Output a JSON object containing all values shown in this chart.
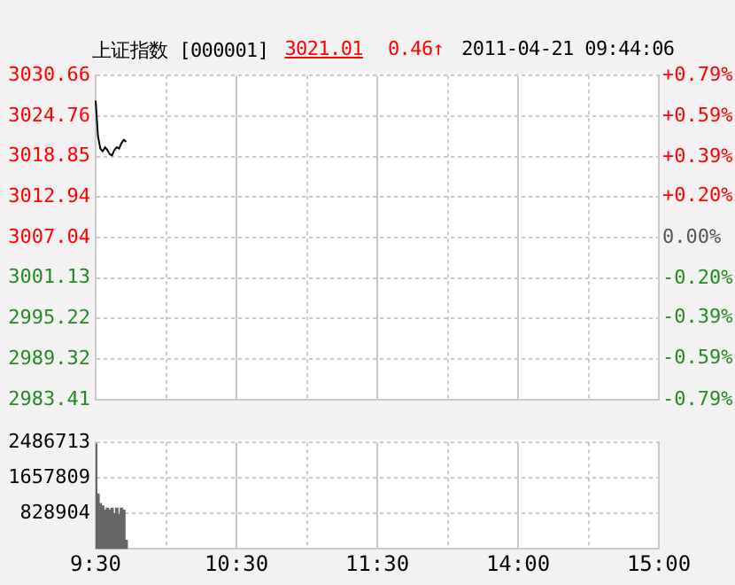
{
  "chart_data": [
    {
      "type": "line",
      "title": "上证指数 [000001]",
      "annotations": [
        "3021.01",
        "0.46↑",
        "2011-04-21 09:44:06"
      ],
      "color": "#000000",
      "categories": [
        null,
        null,
        null,
        null,
        null,
        null,
        null,
        null,
        null,
        null,
        null,
        null,
        null,
        null,
        null,
        null,
        null,
        null,
        null,
        null,
        null,
        null,
        null,
        null,
        null,
        null,
        null,
        null,
        null,
        null,
        null,
        null,
        null,
        null,
        null,
        null,
        null,
        null,
        null,
        null,
        null,
        null,
        null,
        null,
        null,
        null,
        null,
        null,
        null,
        null,
        null,
        null,
        null,
        null,
        null,
        null,
        null,
        null,
        null,
        null,
        null,
        null,
        null,
        null,
        null,
        null,
        null,
        null,
        null,
        null,
        null,
        null,
        null,
        null,
        null,
        null,
        null,
        null,
        null,
        null,
        null,
        null,
        null,
        null,
        null,
        null,
        null,
        null,
        null,
        null,
        null,
        null,
        null,
        null,
        null,
        null,
        null,
        null,
        null,
        null,
        null,
        null,
        null,
        null,
        null,
        null,
        null,
        null,
        null,
        null,
        null,
        null,
        null,
        null,
        null,
        null,
        null,
        null,
        null,
        null,
        null,
        null,
        null,
        null,
        null,
        null,
        null,
        null,
        null,
        null,
        null,
        null,
        null,
        null,
        null,
        null,
        null,
        null,
        null,
        null,
        null,
        null,
        null,
        null,
        null,
        null,
        null,
        null,
        null,
        null,
        null,
        null,
        null,
        null,
        null,
        null,
        null,
        null,
        null,
        null,
        null,
        null,
        null,
        null,
        null,
        null,
        null,
        null,
        null,
        null,
        null,
        null,
        null,
        null,
        null,
        null,
        null,
        null,
        null,
        null,
        null,
        null,
        null,
        null,
        null,
        null,
        null,
        null,
        null,
        null,
        null,
        null,
        null,
        null,
        null,
        null,
        null,
        null,
        null,
        null,
        null,
        null,
        null,
        null,
        null,
        null,
        null,
        null,
        null,
        null,
        null,
        null,
        null,
        null,
        null,
        null,
        null,
        null,
        null,
        null,
        null,
        null,
        null,
        null,
        null,
        null,
        null,
        null,
        null,
        null,
        null,
        null,
        null,
        null,
        null,
        null,
        null,
        null,
        null,
        null,
        null
      ],
      "values": [
        3027.0,
        3021.8,
        3020.0,
        3019.6,
        3020.2,
        3019.8,
        3019.2,
        3019.0,
        3019.8,
        3020.2,
        3020.0,
        3020.8,
        3021.3,
        3021.0,
        null,
        null,
        null,
        null,
        null,
        null,
        null,
        null,
        null,
        null,
        null,
        null,
        null,
        null,
        null,
        null,
        null,
        null,
        null,
        null,
        null,
        null,
        null,
        null,
        null,
        null,
        null,
        null,
        null,
        null,
        null,
        null,
        null,
        null,
        null,
        null,
        null,
        null,
        null,
        null,
        null,
        null,
        null,
        null,
        null,
        null,
        null,
        null,
        null,
        null,
        null,
        null,
        null,
        null,
        null,
        null,
        null,
        null,
        null,
        null,
        null,
        null,
        null,
        null,
        null,
        null,
        null,
        null,
        null,
        null,
        null,
        null,
        null,
        null,
        null,
        null,
        null,
        null,
        null,
        null,
        null,
        null,
        null,
        null,
        null,
        null,
        null,
        null,
        null,
        null,
        null,
        null,
        null,
        null,
        null,
        null,
        null,
        null,
        null,
        null,
        null,
        null,
        null,
        null,
        null,
        null,
        null,
        null,
        null,
        null,
        null,
        null,
        null,
        null,
        null,
        null,
        null,
        null,
        null,
        null,
        null,
        null,
        null,
        null,
        null,
        null,
        null,
        null,
        null,
        null,
        null,
        null,
        null,
        null,
        null,
        null,
        null,
        null,
        null,
        null,
        null,
        null,
        null,
        null,
        null,
        null,
        null,
        null,
        null,
        null,
        null,
        null,
        null,
        null,
        null,
        null,
        null,
        null,
        null,
        null,
        null,
        null,
        null,
        null,
        null,
        null,
        null,
        null,
        null,
        null,
        null,
        null,
        null,
        null,
        null,
        null,
        null,
        null,
        null,
        null,
        null,
        null,
        null,
        null,
        null,
        null,
        null,
        null,
        null,
        null,
        null,
        null,
        null,
        null,
        null,
        null,
        null,
        null,
        null,
        null,
        null,
        null,
        null,
        null,
        null,
        null,
        null,
        null,
        null,
        null,
        null,
        null,
        null,
        null,
        null,
        null,
        null,
        null,
        null,
        null,
        null,
        null,
        null,
        null,
        null,
        null,
        null
      ],
      "ylim": [
        2983.41,
        3030.66
      ],
      "yticks": [
        2983.41,
        2989.32,
        2995.22,
        3001.13,
        3007.04,
        3012.94,
        3018.85,
        3024.76,
        3030.66
      ],
      "y2lim": [
        -0.79,
        0.79
      ],
      "y2ticks": [
        {
          "value": -0.79,
          "label": "-0.79%"
        },
        {
          "value": -0.59,
          "label": "-0.59%"
        },
        {
          "value": -0.39,
          "label": "-0.39%"
        },
        {
          "value": -0.2,
          "label": "-0.20%"
        },
        {
          "value": 0,
          "label": "0.00%"
        },
        {
          "value": 0.2,
          "label": "+0.20%"
        },
        {
          "value": 0.39,
          "label": "+0.39%"
        },
        {
          "value": 0.59,
          "label": "+0.59%"
        },
        {
          "value": 0.79,
          "label": "+0.79%"
        }
      ],
      "grid": true,
      "tick_labels": "y",
      "marker": "none"
    },
    {
      "type": "bar",
      "color": "#666666",
      "categories": [
        "9:30",
        null,
        null,
        null,
        null,
        null,
        null,
        null,
        null,
        null,
        null,
        null,
        null,
        null,
        null,
        null,
        null,
        null,
        null,
        null,
        null,
        null,
        null,
        null,
        null,
        null,
        null,
        null,
        null,
        null,
        null,
        null,
        null,
        null,
        null,
        null,
        null,
        null,
        null,
        null,
        null,
        null,
        null,
        null,
        null,
        null,
        null,
        null,
        null,
        null,
        null,
        null,
        null,
        null,
        null,
        null,
        null,
        null,
        null,
        null,
        "10:30",
        null,
        null,
        null,
        null,
        null,
        null,
        null,
        null,
        null,
        null,
        null,
        null,
        null,
        null,
        null,
        null,
        null,
        null,
        null,
        null,
        null,
        null,
        null,
        null,
        null,
        null,
        null,
        null,
        null,
        null,
        null,
        null,
        null,
        null,
        null,
        null,
        null,
        null,
        null,
        null,
        null,
        null,
        null,
        null,
        null,
        null,
        null,
        null,
        null,
        null,
        null,
        null,
        null,
        null,
        null,
        null,
        null,
        null,
        null,
        "11:30",
        null,
        null,
        null,
        null,
        null,
        null,
        null,
        null,
        null,
        null,
        null,
        null,
        null,
        null,
        null,
        null,
        null,
        null,
        null,
        null,
        null,
        null,
        null,
        null,
        null,
        null,
        null,
        null,
        null,
        null,
        null,
        null,
        null,
        null,
        null,
        null,
        null,
        null,
        null,
        null,
        null,
        null,
        null,
        null,
        null,
        null,
        null,
        null,
        null,
        null,
        null,
        null,
        null,
        null,
        null,
        null,
        null,
        null,
        null,
        "14:00",
        null,
        null,
        null,
        null,
        null,
        null,
        null,
        null,
        null,
        null,
        null,
        null,
        null,
        null,
        null,
        null,
        null,
        null,
        null,
        null,
        null,
        null,
        null,
        null,
        null,
        null,
        null,
        null,
        null,
        null,
        null,
        null,
        null,
        null,
        null,
        null,
        null,
        null,
        null,
        null,
        null,
        null,
        null,
        null,
        null,
        null,
        null,
        null,
        null,
        null,
        null,
        null,
        null,
        null,
        null,
        null,
        null,
        null,
        null,
        "15:00"
      ],
      "values": [
        2450000,
        1280000,
        1060000,
        1000000,
        900000,
        950000,
        900000,
        950000,
        820000,
        950000,
        800000,
        950000,
        900000,
        200000,
        null,
        null,
        null,
        null,
        null,
        null,
        null,
        null,
        null,
        null,
        null,
        null,
        null,
        null,
        null,
        null,
        null,
        null,
        null,
        null,
        null,
        null,
        null,
        null,
        null,
        null,
        null,
        null,
        null,
        null,
        null,
        null,
        null,
        null,
        null,
        null,
        null,
        null,
        null,
        null,
        null,
        null,
        null,
        null,
        null,
        null,
        null,
        null,
        null,
        null,
        null,
        null,
        null,
        null,
        null,
        null,
        null,
        null,
        null,
        null,
        null,
        null,
        null,
        null,
        null,
        null,
        null,
        null,
        null,
        null,
        null,
        null,
        null,
        null,
        null,
        null,
        null,
        null,
        null,
        null,
        null,
        null,
        null,
        null,
        null,
        null,
        null,
        null,
        null,
        null,
        null,
        null,
        null,
        null,
        null,
        null,
        null,
        null,
        null,
        null,
        null,
        null,
        null,
        null,
        null,
        null,
        null,
        null,
        null,
        null,
        null,
        null,
        null,
        null,
        null,
        null,
        null,
        null,
        null,
        null,
        null,
        null,
        null,
        null,
        null,
        null,
        null,
        null,
        null,
        null,
        null,
        null,
        null,
        null,
        null,
        null,
        null,
        null,
        null,
        null,
        null,
        null,
        null,
        null,
        null,
        null,
        null,
        null,
        null,
        null,
        null,
        null,
        null,
        null,
        null,
        null,
        null,
        null,
        null,
        null,
        null,
        null,
        null,
        null,
        null,
        null,
        null,
        null,
        null,
        null,
        null,
        null,
        null,
        null,
        null,
        null,
        null,
        null,
        null,
        null,
        null,
        null,
        null,
        null,
        null,
        null,
        null,
        null,
        null,
        null,
        null,
        null,
        null,
        null,
        null,
        null,
        null,
        null,
        null,
        null,
        null,
        null,
        null,
        null,
        null,
        null,
        null,
        null,
        null,
        null,
        null,
        null,
        null,
        null,
        null,
        null,
        null,
        null,
        null,
        null,
        null,
        null,
        null,
        null,
        null,
        null,
        null
      ],
      "ylim": [
        0,
        2486713
      ],
      "yticks": [
        828904,
        1657809,
        2486713
      ],
      "grid": true
    }
  ]
}
